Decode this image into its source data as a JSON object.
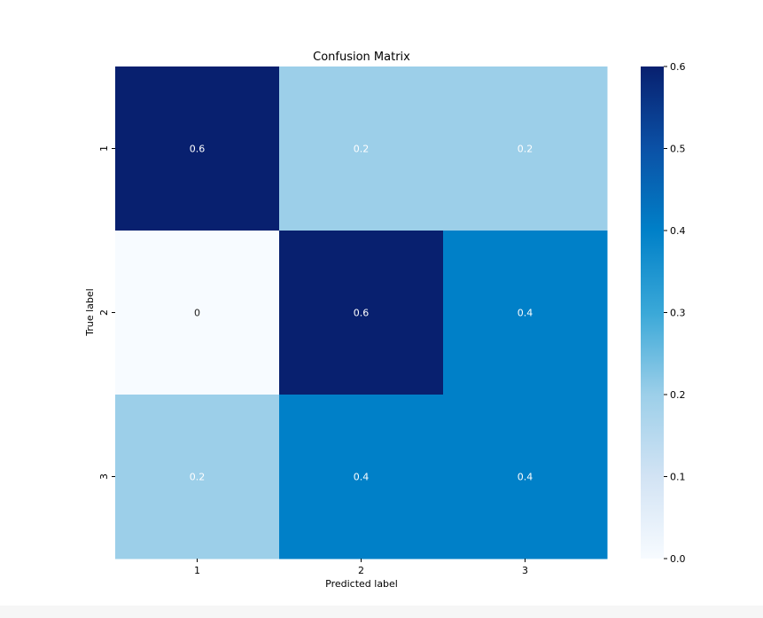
{
  "chart_data": {
    "type": "heatmap",
    "title": "Confusion Matrix",
    "xlabel": "Predicted label",
    "ylabel": "True label",
    "x_categories": [
      "1",
      "2",
      "3"
    ],
    "y_categories": [
      "1",
      "2",
      "3"
    ],
    "values": [
      [
        0.6,
        0.2,
        0.2
      ],
      [
        0,
        0.6,
        0.4
      ],
      [
        0.2,
        0.4,
        0.4
      ]
    ],
    "value_labels": [
      [
        "0.6",
        "0.2",
        "0.2"
      ],
      [
        "0",
        "0.6",
        "0.4"
      ],
      [
        "0.2",
        "0.4",
        "0.4"
      ]
    ],
    "colormap": "Blues",
    "colorbar": {
      "range": [
        0.0,
        0.6
      ],
      "ticks": [
        "0.0",
        "0.1",
        "0.2",
        "0.3",
        "0.4",
        "0.5",
        "0.6"
      ]
    },
    "colors": {
      "low": "#f7fbff",
      "high": "#08206f",
      "annotation_text": "#ffffff",
      "annotation_text_light_cell": "#222222"
    }
  }
}
